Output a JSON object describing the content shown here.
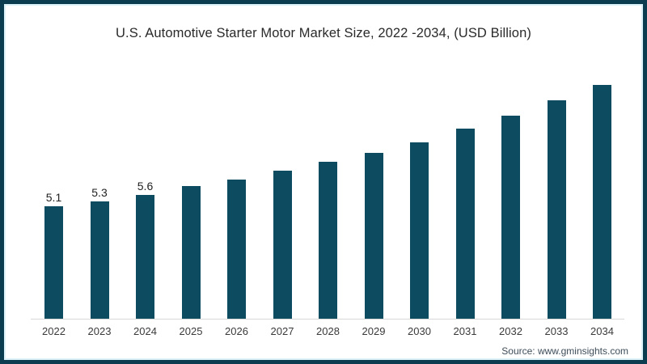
{
  "title": "U.S. Automotive Starter Motor Market Size, 2022 -2034, (USD Billion)",
  "source": "Source: www.gminsights.com",
  "frame": {
    "border_color": "#0c3c50",
    "inner_line_color": "#ddf1f8",
    "background": "#ffffff"
  },
  "chart_data": {
    "type": "bar",
    "title": "U.S. Automotive Starter Motor Market Size, 2022 -2034, (USD Billion)",
    "categories": [
      "2022",
      "2023",
      "2024",
      "2025",
      "2026",
      "2027",
      "2028",
      "2029",
      "2030",
      "2031",
      "2032",
      "2033",
      "2034"
    ],
    "values": [
      5.1,
      5.3,
      5.6,
      6.0,
      6.3,
      6.7,
      7.1,
      7.5,
      8.0,
      8.6,
      9.2,
      9.9,
      10.6
    ],
    "data_labels": [
      "5.1",
      "5.3",
      "5.6",
      "",
      "",
      "",
      "",
      "",
      "",
      "",
      "",
      "",
      ""
    ],
    "xlabel": "",
    "ylabel": "",
    "ylim": [
      0,
      11
    ],
    "grid": false,
    "legend": false,
    "bar_color": "#0d4b60",
    "value_label_color": "#1f1f1f",
    "tick_label_color": "#3a3a3a",
    "axis_line_color": "#d8d8d8"
  }
}
